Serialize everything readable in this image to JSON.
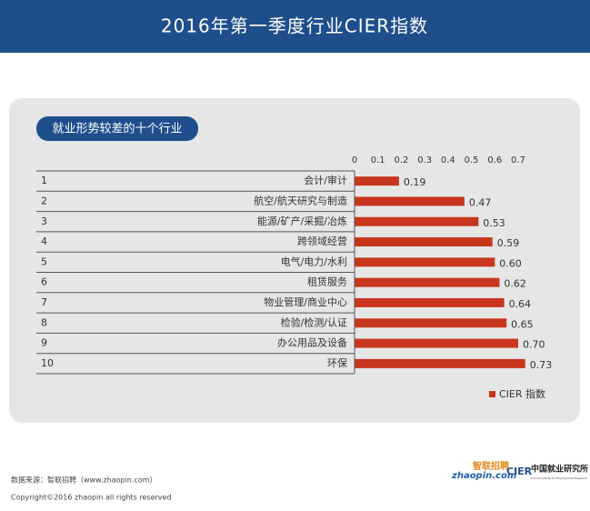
{
  "chart_data": {
    "type": "bar",
    "orientation": "horizontal",
    "title": "2016年第一季度行业CIER指数",
    "subtitle": "就业形势较差的十个行业",
    "ranks": [
      1,
      2,
      3,
      4,
      5,
      6,
      7,
      8,
      9,
      10
    ],
    "categories": [
      "会计/审计",
      "航空/航天研究与制造",
      "能源/矿产/采掘/冶炼",
      "跨领域经营",
      "电气/电力/水利",
      "租赁服务",
      "物业管理/商业中心",
      "检验/检测/认证",
      "办公用品及设备",
      "环保"
    ],
    "series": [
      {
        "name": "CIER 指数",
        "color": "#c8361e",
        "values": [
          0.19,
          0.47,
          0.53,
          0.59,
          0.6,
          0.62,
          0.64,
          0.65,
          0.7,
          0.73
        ],
        "value_labels": [
          "0.19",
          "0.47",
          "0.53",
          "0.59",
          "0.60",
          "0.62",
          "0.64",
          "0.65",
          "0.70",
          "0.73"
        ]
      }
    ],
    "xlim": [
      0,
      0.7
    ],
    "xticks": [
      0,
      0.1,
      0.2,
      0.3,
      0.4,
      0.5,
      0.6,
      0.7
    ],
    "footer": {
      "source": "数据来源：智联招聘（www.zhaopin.com）",
      "copyright": "Copyright©2016 zhaopin all rights reserved",
      "logo1_cn": "智联招聘",
      "logo1_en": "zhaopin.com",
      "logo2_mark": "CIER",
      "logo2_cn": "中国就业研究所",
      "logo2_en": "China Institute for Employment Research"
    }
  }
}
